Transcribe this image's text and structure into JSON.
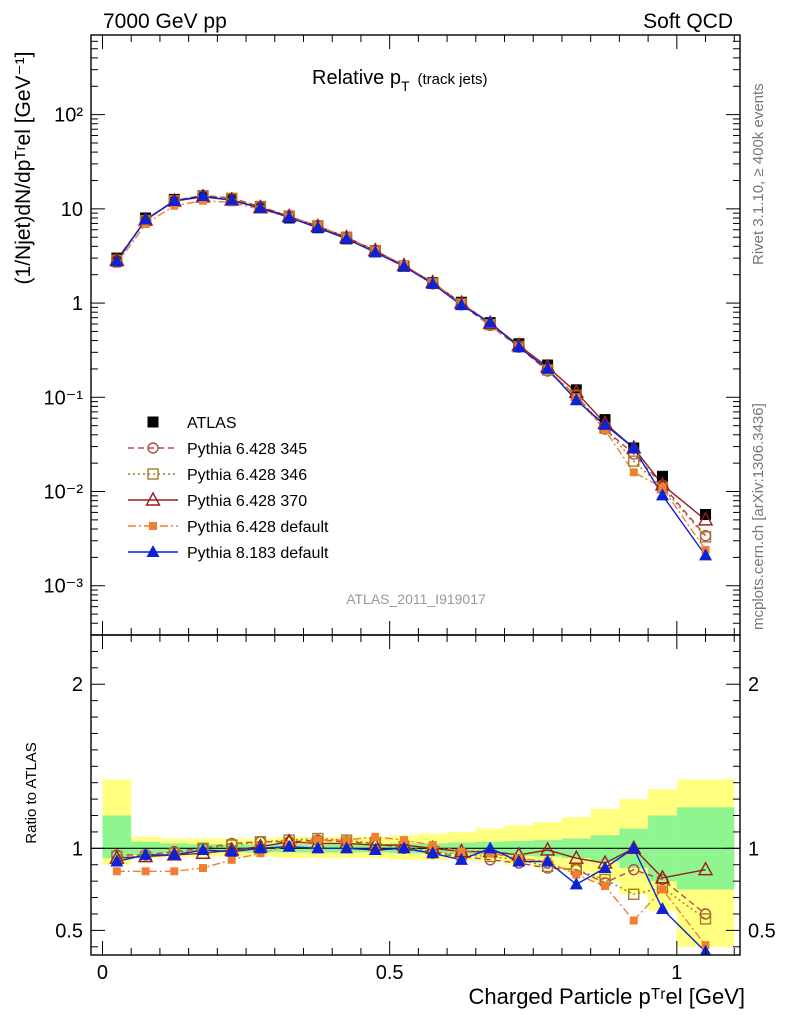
{
  "header": {
    "beam": "7000 GeV pp",
    "category": "Soft QCD",
    "rivet": "Rivet 3.1.10, ≥ 400k events",
    "source": "mcplots.cern.ch [arXiv:1306.3436]",
    "analysis": "ATLAS_2011_I919017"
  },
  "chart_data": [
    {
      "type": "line",
      "panel": "main",
      "title": "Relative pT (track jets)",
      "title_main": "Relative p",
      "title_sub": "T",
      "title_suffix": "(track jets)",
      "ylabel": "(1/Njet)dN/dpᵀʳel [GeV⁻¹]",
      "yscale": "log",
      "ylim": [
        0.0003,
        700
      ],
      "xlim": [
        -0.02,
        1.11
      ],
      "ytick_labels": [
        "10⁻³",
        "10⁻²",
        "10⁻¹",
        "1",
        "10",
        "10²"
      ],
      "ytick_values": [
        0.001,
        0.01,
        0.1,
        1,
        10,
        100
      ],
      "x": [
        0.025,
        0.075,
        0.125,
        0.175,
        0.225,
        0.275,
        0.325,
        0.375,
        0.425,
        0.475,
        0.525,
        0.575,
        0.625,
        0.675,
        0.725,
        0.775,
        0.825,
        0.875,
        0.925,
        0.975,
        1.05
      ],
      "series": [
        {
          "name": "ATLAS",
          "color": "#000000",
          "marker": "square",
          "line": "none",
          "values": [
            3.0,
            8.0,
            12.6,
            13.8,
            12.6,
            10.2,
            8.0,
            6.3,
            4.8,
            3.5,
            2.45,
            1.65,
            1.02,
            0.62,
            0.37,
            0.22,
            0.12,
            0.058,
            0.029,
            0.0145,
            0.0057
          ]
        },
        {
          "name": "Pythia 6.428 345",
          "color": "#b04a4a",
          "marker": "circle-open",
          "line": "dashed",
          "values": [
            2.9,
            7.6,
            12.3,
            13.9,
            13.0,
            10.6,
            8.3,
            6.6,
            5.0,
            3.6,
            2.45,
            1.6,
            0.96,
            0.58,
            0.34,
            0.19,
            0.104,
            0.046,
            0.025,
            0.0117,
            0.0034
          ]
        },
        {
          "name": "Pythia 6.428 346",
          "color": "#a67c27",
          "marker": "square-open",
          "line": "dotted",
          "values": [
            2.85,
            7.5,
            12.2,
            13.8,
            12.9,
            10.6,
            8.4,
            6.6,
            5.0,
            3.6,
            2.48,
            1.62,
            0.98,
            0.59,
            0.345,
            0.195,
            0.105,
            0.047,
            0.021,
            0.011,
            0.0033
          ]
        },
        {
          "name": "Pythia 6.428 370",
          "color": "#9b1c1c",
          "marker": "triangle-open",
          "line": "solid",
          "values": [
            2.85,
            7.6,
            12.1,
            13.4,
            12.4,
            10.3,
            8.3,
            6.5,
            4.95,
            3.6,
            2.5,
            1.65,
            1.0,
            0.61,
            0.355,
            0.21,
            0.113,
            0.053,
            0.029,
            0.0118,
            0.005
          ]
        },
        {
          "name": "Pythia 6.428 default",
          "color": "#f08030",
          "marker": "square-small",
          "line": "dashdot",
          "values": [
            2.6,
            6.9,
            10.8,
            12.2,
            11.7,
            9.9,
            8.2,
            6.6,
            5.0,
            3.6,
            2.55,
            1.65,
            1.0,
            0.6,
            0.345,
            0.2,
            0.1,
            0.045,
            0.016,
            0.011,
            0.0024
          ]
        },
        {
          "name": "Pythia 8.183 default",
          "color": "#0b22d6",
          "marker": "triangle",
          "line": "solid",
          "values": [
            2.75,
            7.7,
            12.1,
            13.7,
            12.3,
            10.2,
            8.1,
            6.3,
            4.8,
            3.45,
            2.45,
            1.6,
            0.95,
            0.62,
            0.34,
            0.2,
            0.093,
            0.051,
            0.029,
            0.0091,
            0.0021
          ]
        }
      ]
    },
    {
      "type": "line",
      "panel": "ratio",
      "xlabel": "Charged Particle pᵀʳel [GeV]",
      "ylabel": "Ratio to ATLAS",
      "ylim": [
        0.35,
        2.3
      ],
      "xlim": [
        -0.02,
        1.11
      ],
      "xtick_labels": [
        "0",
        "0.5",
        "1"
      ],
      "xtick_values": [
        0,
        0.5,
        1
      ],
      "ytick_labels": [
        "0.5",
        "1",
        "2"
      ],
      "ytick_values": [
        0.5,
        1,
        2
      ],
      "x": [
        0.025,
        0.075,
        0.125,
        0.175,
        0.225,
        0.275,
        0.325,
        0.375,
        0.425,
        0.475,
        0.525,
        0.575,
        0.625,
        0.675,
        0.725,
        0.775,
        0.825,
        0.875,
        0.925,
        0.975,
        1.05
      ],
      "bands": {
        "edges": [
          0.0,
          0.05,
          0.1,
          0.15,
          0.2,
          0.25,
          0.3,
          0.35,
          0.4,
          0.45,
          0.5,
          0.55,
          0.6,
          0.65,
          0.7,
          0.75,
          0.8,
          0.85,
          0.9,
          0.95,
          1.0,
          1.1
        ],
        "stat_color": "#8ff58f",
        "total_color": "#ffff80",
        "stat_lo": [
          0.94,
          0.96,
          0.97,
          0.975,
          0.975,
          0.975,
          0.975,
          0.975,
          0.975,
          0.975,
          0.97,
          0.97,
          0.965,
          0.96,
          0.955,
          0.95,
          0.94,
          0.92,
          0.88,
          0.8,
          0.75
        ],
        "stat_hi": [
          1.2,
          1.04,
          1.03,
          1.025,
          1.025,
          1.025,
          1.025,
          1.025,
          1.025,
          1.025,
          1.03,
          1.03,
          1.035,
          1.04,
          1.045,
          1.05,
          1.06,
          1.08,
          1.12,
          1.2,
          1.25
        ],
        "total_lo": [
          0.9,
          0.94,
          0.95,
          0.95,
          0.95,
          0.95,
          0.94,
          0.94,
          0.94,
          0.94,
          0.93,
          0.93,
          0.93,
          0.92,
          0.9,
          0.88,
          0.86,
          0.8,
          0.72,
          0.62,
          0.4
        ],
        "total_hi": [
          1.42,
          1.07,
          1.06,
          1.06,
          1.06,
          1.06,
          1.07,
          1.07,
          1.07,
          1.07,
          1.08,
          1.09,
          1.1,
          1.12,
          1.14,
          1.16,
          1.19,
          1.24,
          1.3,
          1.36,
          1.42
        ]
      },
      "series": [
        {
          "name": "Pythia 6.428 345",
          "color": "#b04a4a",
          "marker": "circle-open",
          "line": "dashed",
          "values": [
            0.96,
            0.96,
            0.98,
            1.0,
            1.03,
            1.04,
            1.04,
            1.05,
            1.04,
            1.03,
            1.0,
            0.97,
            0.95,
            0.93,
            0.91,
            0.88,
            0.87,
            0.79,
            0.87,
            0.81,
            0.6
          ]
        },
        {
          "name": "Pythia 6.428 346",
          "color": "#a67c27",
          "marker": "square-open",
          "line": "dotted",
          "values": [
            0.95,
            0.95,
            0.97,
            1.0,
            1.02,
            1.04,
            1.05,
            1.06,
            1.05,
            1.03,
            1.01,
            0.98,
            0.96,
            0.95,
            0.93,
            0.89,
            0.87,
            0.81,
            0.72,
            0.76,
            0.57
          ]
        },
        {
          "name": "Pythia 6.428 370",
          "color": "#9b1c1c",
          "marker": "triangle-open",
          "line": "solid",
          "values": [
            0.94,
            0.95,
            0.96,
            0.97,
            0.99,
            1.01,
            1.04,
            1.03,
            1.03,
            1.02,
            1.02,
            1.0,
            0.98,
            0.98,
            0.96,
            0.99,
            0.94,
            0.91,
            1.0,
            0.82,
            0.87
          ]
        },
        {
          "name": "Pythia 6.428 default",
          "color": "#f08030",
          "marker": "square-small",
          "line": "dashdot",
          "values": [
            0.86,
            0.86,
            0.86,
            0.88,
            0.93,
            0.97,
            1.02,
            1.05,
            1.05,
            1.07,
            1.05,
            1.02,
            0.98,
            0.97,
            0.94,
            0.92,
            0.84,
            0.77,
            0.56,
            0.75,
            0.41
          ]
        },
        {
          "name": "Pythia 8.183 default",
          "color": "#0b22d6",
          "marker": "triangle",
          "line": "solid",
          "values": [
            0.92,
            0.96,
            0.96,
            0.99,
            0.98,
            1.0,
            1.01,
            1.0,
            1.0,
            0.99,
            1.0,
            0.97,
            0.93,
            1.0,
            0.92,
            0.92,
            0.78,
            0.88,
            1.0,
            0.63,
            0.37
          ]
        }
      ]
    }
  ]
}
